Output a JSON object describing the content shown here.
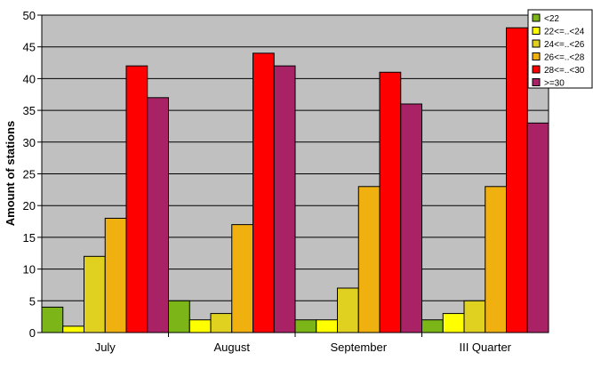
{
  "chart_data": {
    "type": "bar",
    "title": "",
    "xlabel": "",
    "ylabel": "Amount of stations",
    "ylim": [
      0,
      50
    ],
    "yticks": [
      0,
      5,
      10,
      15,
      20,
      25,
      30,
      35,
      40,
      45,
      50
    ],
    "grid": true,
    "legend_position": "top-right",
    "plot_background": "#c0c0c0",
    "categories": [
      "July",
      "August",
      "September",
      "III Quarter"
    ],
    "series": [
      {
        "name": "<22",
        "color": "#7cb518",
        "values": [
          4,
          5,
          2,
          2
        ]
      },
      {
        "name": "22<=..<24",
        "color": "#ffff00",
        "values": [
          1,
          2,
          2,
          3
        ]
      },
      {
        "name": "24<=..<26",
        "color": "#e0d020",
        "values": [
          12,
          3,
          7,
          5
        ]
      },
      {
        "name": "26<=..<28",
        "color": "#f0b010",
        "values": [
          18,
          17,
          23,
          23
        ]
      },
      {
        "name": "28<=..<30",
        "color": "#ff0000",
        "values": [
          42,
          44,
          41,
          48
        ]
      },
      {
        "name": ">=30",
        "color": "#aa2266",
        "values": [
          37,
          42,
          36,
          33
        ]
      }
    ]
  }
}
